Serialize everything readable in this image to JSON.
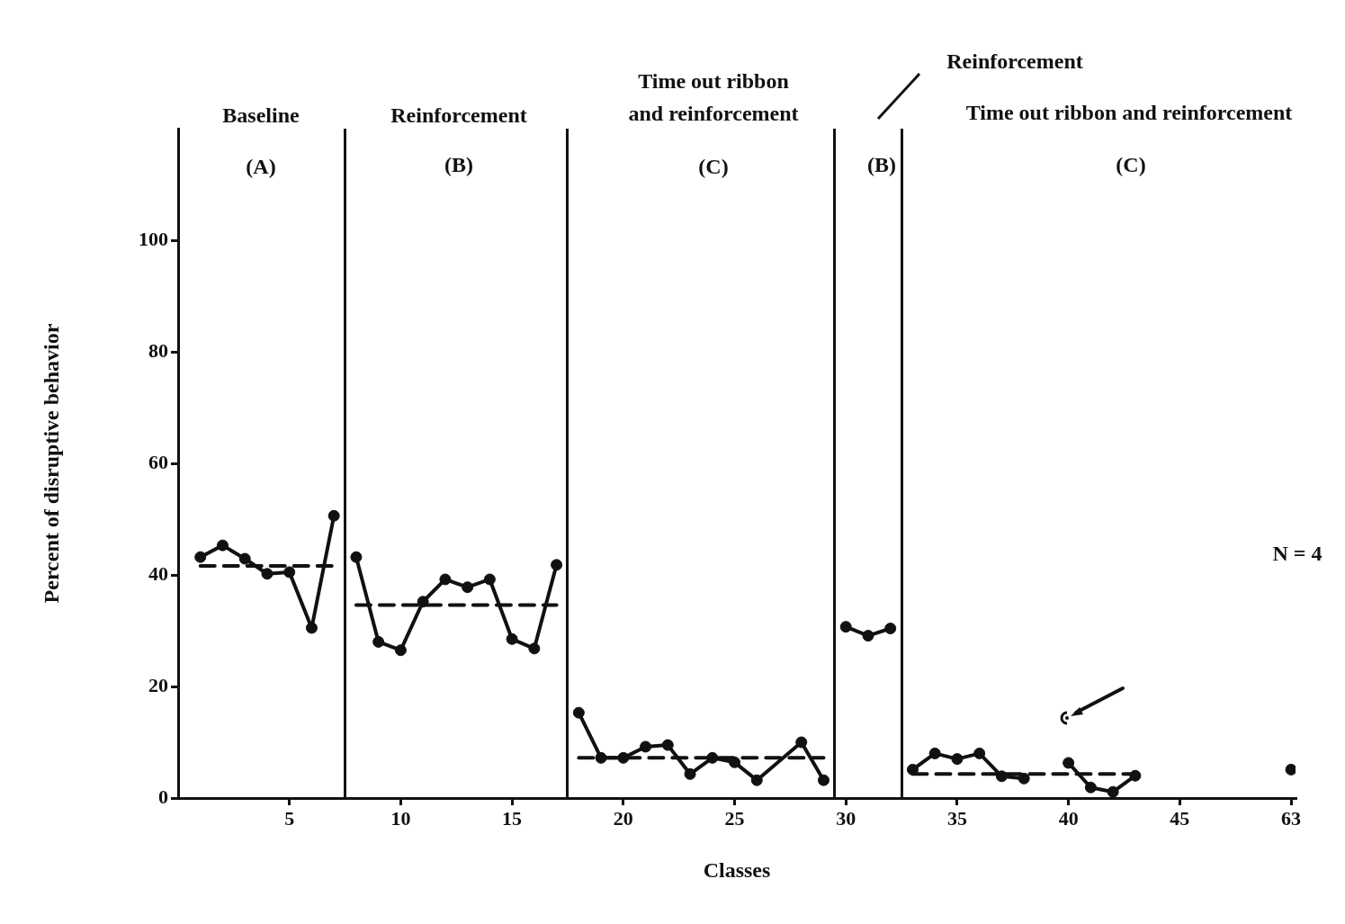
{
  "chart_data": {
    "type": "line",
    "xlabel": "Classes",
    "ylabel": "Percent of disruptive behavior",
    "ylim": [
      0,
      120
    ],
    "yticks": [
      0,
      20,
      40,
      60,
      80,
      100
    ],
    "grid": false,
    "legend": false,
    "categories": [
      null,
      null,
      null,
      null,
      "5",
      null,
      null,
      null,
      null,
      "10",
      null,
      null,
      null,
      null,
      "15",
      null,
      null,
      null,
      null,
      "20",
      null,
      null,
      null,
      null,
      "25",
      null,
      null,
      null,
      null,
      "30",
      null,
      null,
      null,
      null,
      "35",
      null,
      null,
      null,
      null,
      "40",
      null,
      null,
      null,
      null,
      "45",
      null,
      null,
      null,
      null,
      "63"
    ],
    "series": [
      {
        "color": "#111111",
        "marker": "circle",
        "line_style": "solid",
        "values": [
          43.2,
          45.3,
          42.9,
          40.2,
          40.5,
          30.5,
          50.6,
          null,
          null,
          null,
          null,
          null,
          null,
          null,
          null,
          null,
          null,
          null,
          null,
          null,
          null,
          null,
          null,
          null,
          null,
          null,
          null,
          null,
          null,
          null,
          null,
          null,
          null,
          null,
          null,
          null,
          null,
          null,
          null,
          null,
          null,
          null,
          null,
          null,
          null,
          null,
          null,
          null,
          null,
          null
        ]
      },
      {
        "color": "#111111",
        "marker": "circle",
        "line_style": "solid",
        "values": [
          null,
          null,
          null,
          null,
          null,
          null,
          null,
          43.2,
          28,
          26.5,
          35.2,
          39.2,
          37.8,
          39.2,
          28.5,
          26.8,
          41.8,
          null,
          null,
          null,
          null,
          null,
          null,
          null,
          null,
          null,
          null,
          null,
          null,
          null,
          null,
          null,
          null,
          null,
          null,
          null,
          null,
          null,
          null,
          null,
          null,
          null,
          null,
          null,
          null,
          null,
          null,
          null,
          null,
          null
        ]
      },
      {
        "color": "#111111",
        "marker": "circle",
        "line_style": "solid",
        "values": [
          null,
          null,
          null,
          null,
          null,
          null,
          null,
          null,
          null,
          null,
          null,
          null,
          null,
          null,
          null,
          null,
          null,
          15.3,
          7.2,
          7.2,
          9.2,
          9.5,
          4.3,
          7.2,
          6.4,
          3.2,
          null,
          10,
          3.2,
          null,
          null,
          null,
          null,
          null,
          null,
          null,
          null,
          null,
          null,
          null,
          null,
          null,
          null,
          null,
          null,
          null,
          null,
          null,
          null,
          null
        ]
      },
      {
        "color": "#111111",
        "marker": "circle",
        "line_style": "solid",
        "values": [
          null,
          null,
          null,
          null,
          null,
          null,
          null,
          null,
          null,
          null,
          null,
          null,
          null,
          null,
          null,
          null,
          null,
          null,
          null,
          null,
          null,
          null,
          null,
          null,
          null,
          null,
          null,
          null,
          null,
          30.7,
          29.1,
          30.4,
          null,
          null,
          null,
          null,
          null,
          null,
          null,
          null,
          null,
          null,
          null,
          null,
          null,
          null,
          null,
          null,
          null,
          null
        ]
      },
      {
        "color": "#111111",
        "marker": "circle",
        "line_style": "solid",
        "values": [
          null,
          null,
          null,
          null,
          null,
          null,
          null,
          null,
          null,
          null,
          null,
          null,
          null,
          null,
          null,
          null,
          null,
          null,
          null,
          null,
          null,
          null,
          null,
          null,
          null,
          null,
          null,
          null,
          null,
          null,
          null,
          null,
          5.1,
          8,
          7,
          8,
          3.9,
          3.5,
          null,
          null,
          null,
          null,
          null,
          null,
          null,
          null,
          null,
          null,
          null,
          null
        ]
      },
      {
        "color": "#111111",
        "marker": "circle",
        "line_style": "solid",
        "values": [
          null,
          null,
          null,
          null,
          null,
          null,
          null,
          null,
          null,
          null,
          null,
          null,
          null,
          null,
          null,
          null,
          null,
          null,
          null,
          null,
          null,
          null,
          null,
          null,
          null,
          null,
          null,
          null,
          null,
          null,
          null,
          null,
          null,
          null,
          null,
          null,
          null,
          null,
          null,
          6.3,
          1.9,
          1.1,
          4,
          null,
          null,
          null,
          null,
          null,
          null,
          null
        ]
      },
      {
        "color": "#111111",
        "marker": "circle",
        "line_style": "solid",
        "values": [
          null,
          null,
          null,
          null,
          null,
          null,
          null,
          null,
          null,
          null,
          null,
          null,
          null,
          null,
          null,
          null,
          null,
          null,
          null,
          null,
          null,
          null,
          null,
          null,
          null,
          null,
          null,
          null,
          null,
          null,
          null,
          null,
          null,
          null,
          null,
          null,
          null,
          null,
          null,
          null,
          null,
          null,
          null,
          null,
          null,
          null,
          null,
          null,
          null,
          5.1
        ]
      },
      {
        "color": "#111111",
        "marker": "none",
        "line_style": "dashed",
        "values": [
          41.6,
          41.6,
          41.6,
          41.6,
          41.6,
          41.6,
          41.6,
          null,
          null,
          null,
          null,
          null,
          null,
          null,
          null,
          null,
          null,
          null,
          null,
          null,
          null,
          null,
          null,
          null,
          null,
          null,
          null,
          null,
          null,
          null,
          null,
          null,
          null,
          null,
          null,
          null,
          null,
          null,
          null,
          null,
          null,
          null,
          null,
          null,
          null,
          null,
          null,
          null,
          null,
          null
        ]
      },
      {
        "color": "#111111",
        "marker": "none",
        "line_style": "dashed",
        "values": [
          null,
          null,
          null,
          null,
          null,
          null,
          null,
          34.6,
          34.6,
          34.6,
          34.6,
          34.6,
          34.6,
          34.6,
          34.6,
          34.6,
          34.6,
          null,
          null,
          null,
          null,
          null,
          null,
          null,
          null,
          null,
          null,
          null,
          null,
          null,
          null,
          null,
          null,
          null,
          null,
          null,
          null,
          null,
          null,
          null,
          null,
          null,
          null,
          null,
          null,
          null,
          null,
          null,
          null,
          null
        ]
      },
      {
        "color": "#111111",
        "marker": "none",
        "line_style": "dashed",
        "values": [
          null,
          null,
          null,
          null,
          null,
          null,
          null,
          null,
          null,
          null,
          null,
          null,
          null,
          null,
          null,
          null,
          null,
          7.2,
          7.2,
          7.2,
          7.2,
          7.2,
          7.2,
          7.2,
          7.2,
          7.2,
          7.2,
          7.2,
          7.2,
          null,
          null,
          null,
          null,
          null,
          null,
          null,
          null,
          null,
          null,
          null,
          null,
          null,
          null,
          null,
          null,
          null,
          null,
          null,
          null,
          null
        ]
      },
      {
        "color": "#111111",
        "marker": "none",
        "line_style": "dashed",
        "values": [
          null,
          null,
          null,
          null,
          null,
          null,
          null,
          null,
          null,
          null,
          null,
          null,
          null,
          null,
          null,
          null,
          null,
          null,
          null,
          null,
          null,
          null,
          null,
          null,
          null,
          null,
          null,
          null,
          null,
          null,
          null,
          null,
          4.3,
          4.3,
          4.3,
          4.3,
          4.3,
          4.3,
          4.3,
          4.3,
          4.3,
          4.3,
          4.3,
          null,
          null,
          null,
          null,
          null,
          null,
          null
        ]
      }
    ],
    "annotations": [
      "Baseline",
      "(A)",
      "Reinforcement",
      "(B)",
      "Time out ribbon",
      "and reinforcement",
      "(C)",
      "(B)",
      "Reinforcement",
      "Time out ribbon and reinforcement",
      "(C)",
      "N = 4"
    ]
  }
}
